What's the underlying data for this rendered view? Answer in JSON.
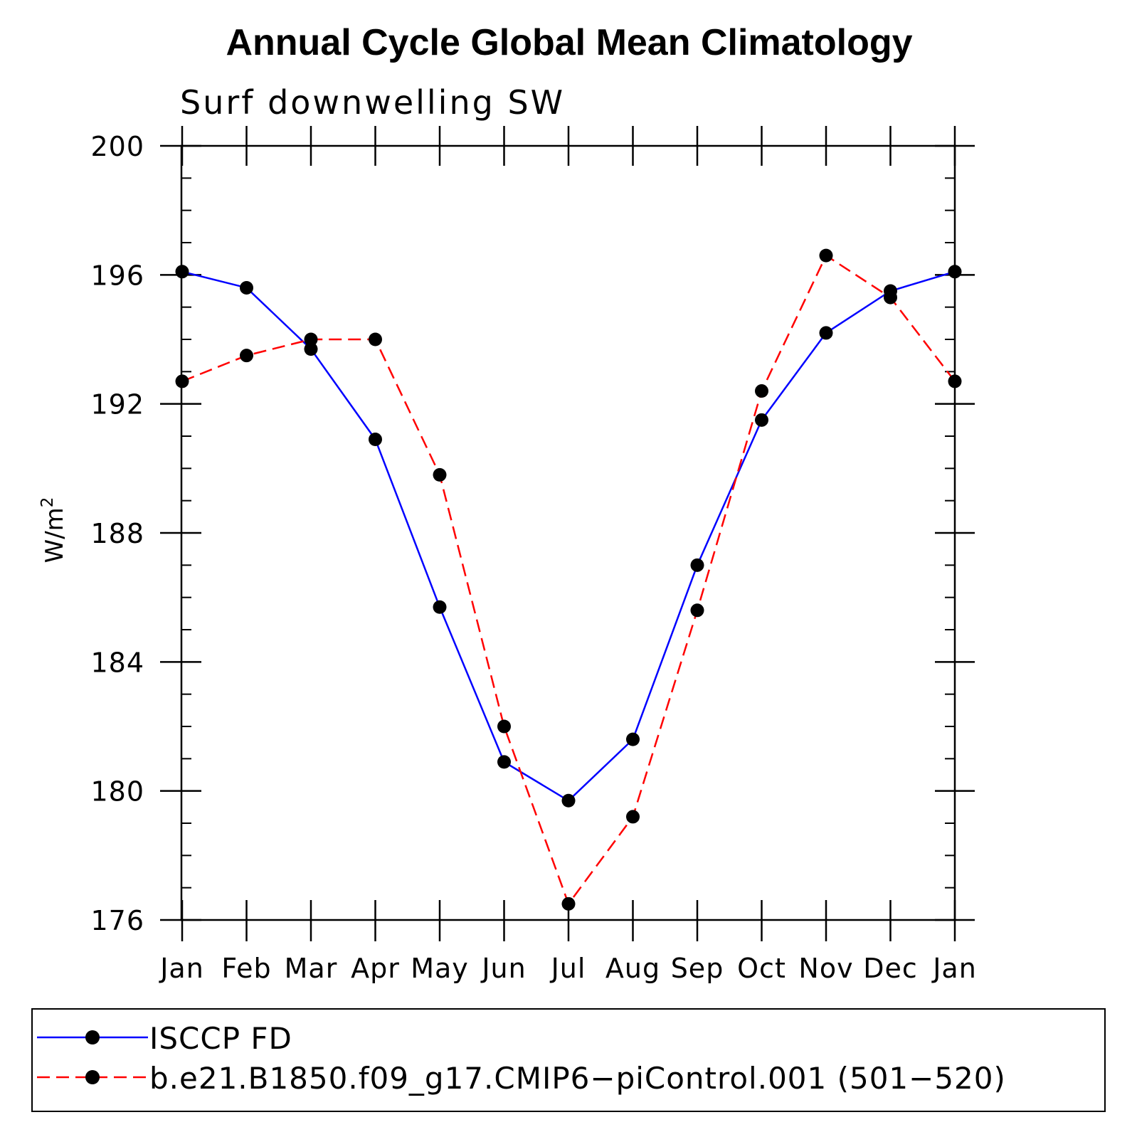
{
  "chart_data": {
    "type": "line",
    "title": "Annual Cycle Global Mean Climatology",
    "subtitle": "Surf downwelling SW",
    "ylabel": "W/m",
    "ylabel_superscript": "2",
    "xlabel": "",
    "categories": [
      "Jan",
      "Feb",
      "Mar",
      "Apr",
      "May",
      "Jun",
      "Jul",
      "Aug",
      "Sep",
      "Oct",
      "Nov",
      "Dec",
      "Jan"
    ],
    "ylim": [
      176,
      200
    ],
    "yticks": [
      "176",
      "180",
      "184",
      "188",
      "192",
      "196",
      "200"
    ],
    "series": [
      {
        "name": "ISCCP FD",
        "color": "#0000ff",
        "style": "solid",
        "values": [
          196.1,
          195.6,
          193.7,
          190.9,
          185.7,
          180.9,
          179.7,
          181.6,
          187.0,
          191.5,
          194.2,
          195.5,
          196.1
        ]
      },
      {
        "name": "b.e21.B1850.f09_g17.CMIP6−piControl.001 (501−520)",
        "color": "#ff0000",
        "style": "dashed",
        "values": [
          192.7,
          193.5,
          194.0,
          194.0,
          189.8,
          182.0,
          176.5,
          179.2,
          185.6,
          192.4,
          196.6,
          195.3,
          192.7
        ]
      }
    ],
    "marker_color": "#000000",
    "legend_position": "bottom"
  }
}
